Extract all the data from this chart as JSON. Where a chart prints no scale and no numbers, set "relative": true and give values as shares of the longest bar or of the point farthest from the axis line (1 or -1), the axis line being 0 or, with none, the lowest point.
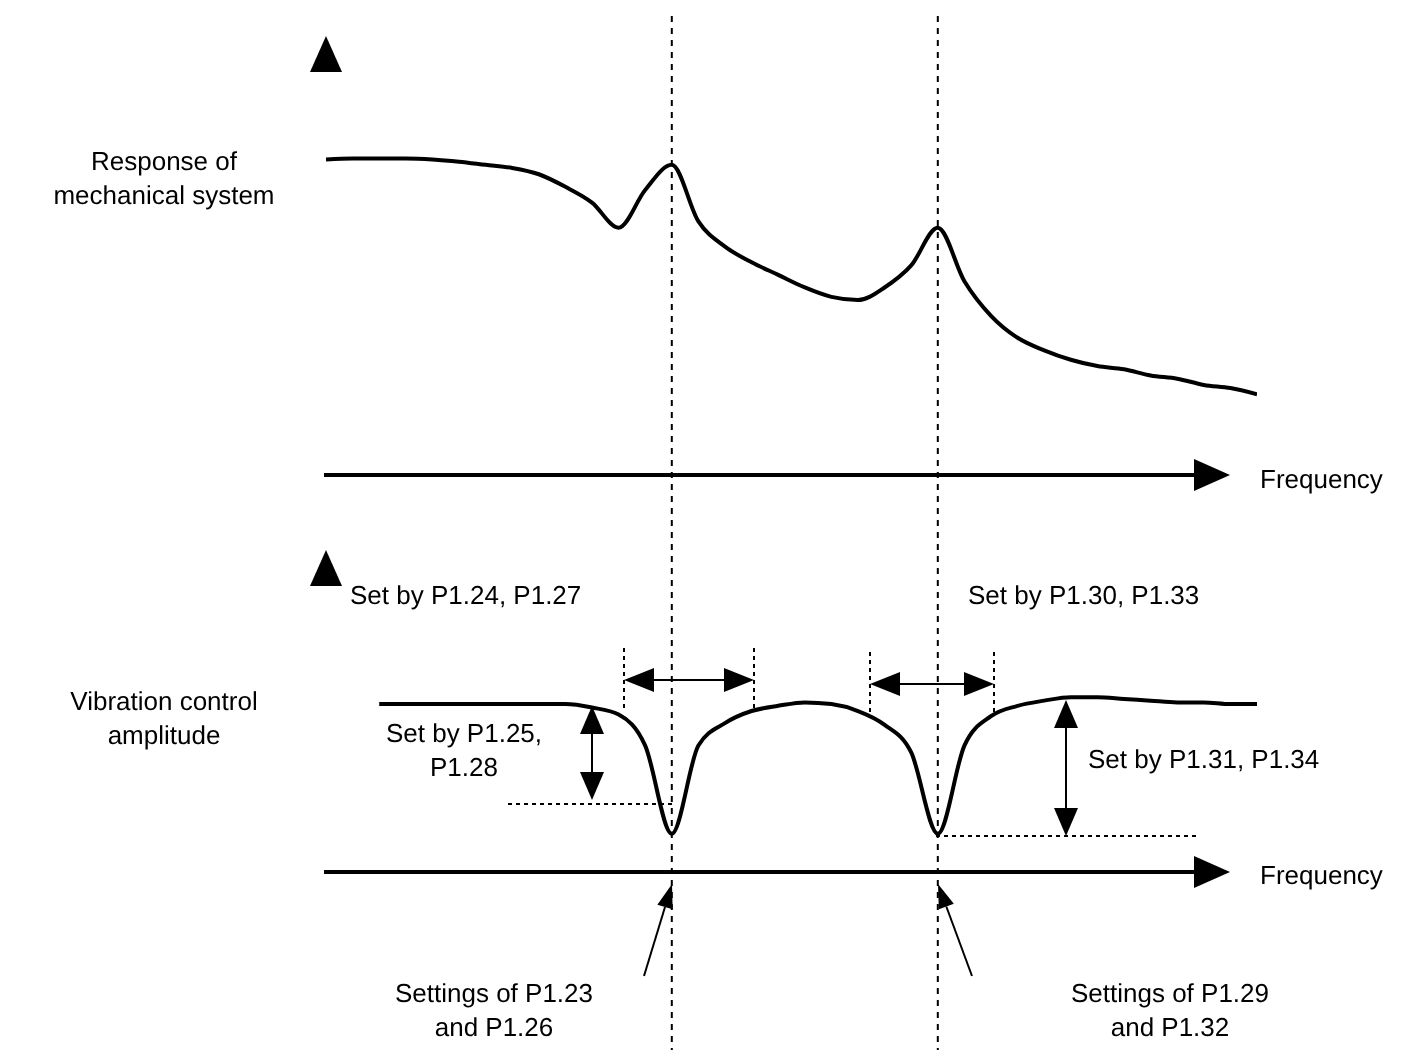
{
  "chart_data": [
    {
      "type": "line",
      "relative": true,
      "ylabel": "Response of mechanical system",
      "xlabel": "Frequency",
      "categories": [
        null,
        null,
        null,
        null,
        null,
        null,
        null,
        null,
        null,
        null,
        null,
        null,
        null,
        null,
        null,
        null,
        null,
        null,
        null,
        null,
        null,
        null,
        null,
        null,
        null,
        null,
        null,
        null,
        null,
        null,
        null,
        null,
        null,
        null,
        null,
        null
      ],
      "series": [
        {
          "color": "#000000",
          "values": [
            0.997,
            1,
            1,
            1,
            0.997,
            0.99,
            0.98,
            0.97,
            0.95,
            0.91,
            0.86,
            0.78,
            0.9,
            0.98,
            0.8,
            0.72,
            0.67,
            0.63,
            0.59,
            0.56,
            0.55,
            0.59,
            0.66,
            0.78,
            0.61,
            0.5,
            0.43,
            0.39,
            0.36,
            0.34,
            0.33,
            0.31,
            0.3,
            0.28,
            0.27,
            0.25
          ]
        }
      ]
    },
    {
      "type": "line",
      "relative": true,
      "ylabel": "Vibration control amplitude",
      "xlabel": "Frequency",
      "categories": [
        null,
        null,
        null,
        null,
        null,
        null,
        null,
        null,
        null,
        null,
        null,
        null,
        null,
        null,
        null,
        null,
        null,
        null,
        null,
        null,
        null,
        null,
        null,
        null,
        null,
        null,
        null,
        null,
        null,
        null,
        null,
        null,
        null,
        null,
        null,
        null
      ],
      "series": [
        {
          "color": "#000000",
          "values": [
            null,
            null,
            0.96,
            0.96,
            0.96,
            0.96,
            0.96,
            0.96,
            0.96,
            0.96,
            0.94,
            0.9,
            0.72,
            0.21,
            0.72,
            0.85,
            0.92,
            0.95,
            0.97,
            0.96,
            0.92,
            0.84,
            0.68,
            0.21,
            0.72,
            0.89,
            0.95,
            0.98,
            1,
            1,
            0.99,
            0.98,
            0.97,
            0.97,
            0.96,
            0.96
          ]
        }
      ],
      "annotations": [
        "Set by P1.24, P1.27",
        "Set by P1.30, P1.33",
        "Set by P1.25, P1.28",
        "Set by P1.31, P1.34",
        "Settings of P1.23 and P1.26",
        "Settings of P1.29 and P1.32"
      ]
    }
  ]
}
